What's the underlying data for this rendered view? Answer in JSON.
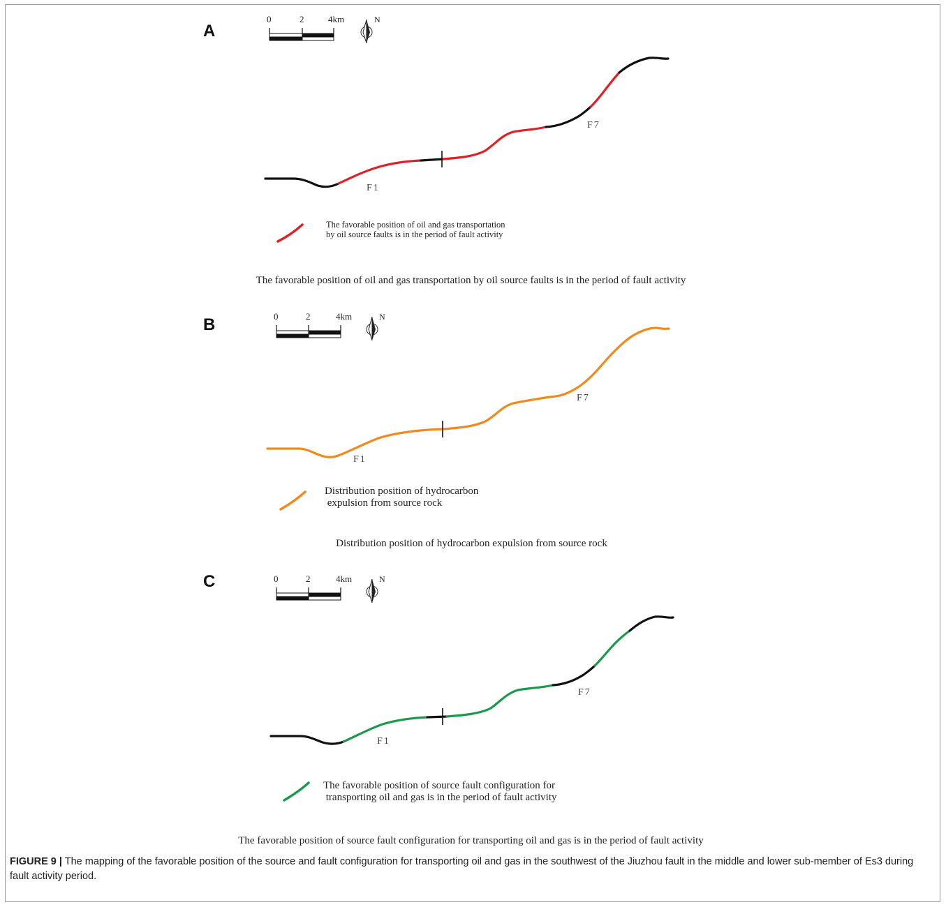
{
  "colors": {
    "fault_base": "#111111",
    "transport": "#e01f26",
    "expulsion": "#f08a1c",
    "configuration": "#1a9a4a"
  },
  "scale_bar": {
    "ticks": [
      "0",
      "2",
      "4km"
    ],
    "north": "N"
  },
  "panels": [
    {
      "letter": "A",
      "faults": [
        "F1",
        "F7"
      ],
      "legend_lines": [
        "The favorable position of oil and gas transportation",
        "by oil source faults is in the period of fault activity"
      ],
      "caption": "The favorable position of oil and gas transportation by oil source faults is in the period of fault activity",
      "highlight_color": "transport"
    },
    {
      "letter": "B",
      "faults": [
        "F1",
        "F7"
      ],
      "legend_lines": [
        "Distribution position of hydrocarbon",
        " expulsion from source rock"
      ],
      "caption": "Distribution position of hydrocarbon expulsion from source rock",
      "highlight_color": "expulsion"
    },
    {
      "letter": "C",
      "faults": [
        "F1",
        "F7"
      ],
      "legend_lines": [
        "The favorable position of source fault configuration for",
        " transporting oil and gas is in the period of fault activity"
      ],
      "caption": "The favorable position of source fault configuration for transporting oil and gas is in the period of fault activity",
      "highlight_color": "configuration"
    }
  ],
  "figure_caption": {
    "label": "FIGURE 9 |",
    "text": " The mapping of the favorable position of the source and fault configuration for transporting oil and gas in the southwest of the Jiuzhou fault in the middle and lower sub-member of Es3 during fault activity period."
  }
}
